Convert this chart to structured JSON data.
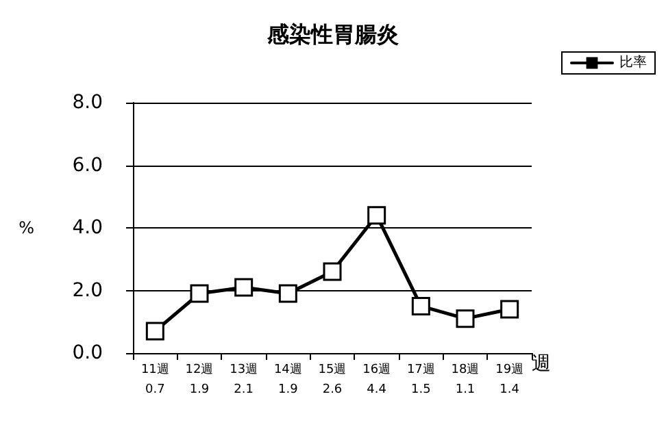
{
  "chart_data": {
    "type": "line",
    "title": "感染性胃腸炎",
    "xlabel": "週",
    "ylabel": "%",
    "categories": [
      "11週",
      "12週",
      "13週",
      "14週",
      "15週",
      "16週",
      "17週",
      "18週",
      "19週"
    ],
    "series": [
      {
        "name": "比率",
        "color": "#000000",
        "values": [
          0.7,
          1.9,
          2.1,
          1.9,
          2.6,
          4.4,
          1.5,
          1.1,
          1.4
        ]
      }
    ],
    "ylim": [
      0,
      8
    ],
    "yticks": [
      {
        "value": 0,
        "label": "0.0"
      },
      {
        "value": 2,
        "label": "2.0"
      },
      {
        "value": 4,
        "label": "4.0"
      },
      {
        "value": 6,
        "label": "6.0"
      },
      {
        "value": 8,
        "label": "8.0"
      }
    ],
    "grid": "y",
    "legend": "top right",
    "marker": "square",
    "line_style": "solid",
    "data_labels": true
  }
}
